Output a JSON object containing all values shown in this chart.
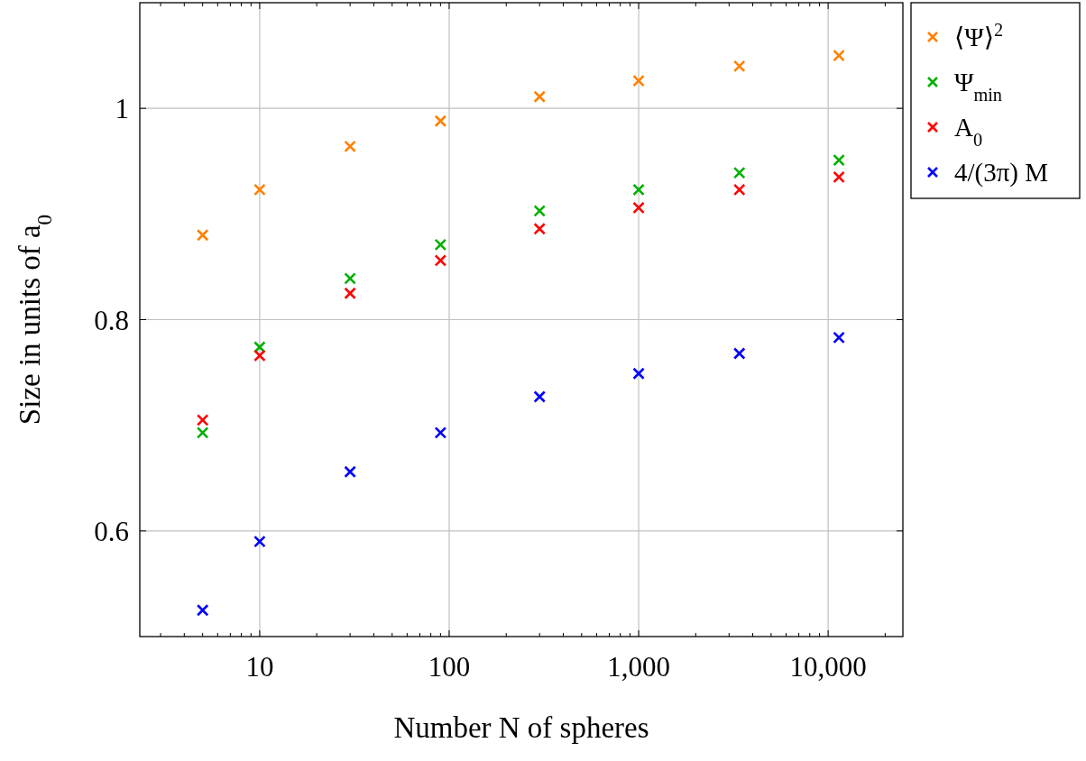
{
  "chart_data": {
    "type": "scatter",
    "xlabel": "Number N of spheres",
    "ylabel": "Size in units of a$_{0}$",
    "x": [
      5,
      10,
      30,
      90,
      300,
      1000,
      3400,
      11400
    ],
    "series": [
      {
        "name": "⟨Ψ⟩$^{2}$",
        "color": "#ff8000",
        "values": [
          0.88,
          0.923,
          0.964,
          0.988,
          1.011,
          1.026,
          1.04,
          1.05
        ]
      },
      {
        "name": "Ψ$_{min}$",
        "color": "#00b000",
        "values": [
          0.693,
          0.774,
          0.839,
          0.871,
          0.903,
          0.923,
          0.939,
          0.951
        ]
      },
      {
        "name": "A$_{0}$",
        "color": "#ff0000",
        "values": [
          0.705,
          0.766,
          0.825,
          0.856,
          0.886,
          0.906,
          0.923,
          0.935
        ]
      },
      {
        "name": "4/(3π) M",
        "color": "#0000ff",
        "values": [
          0.525,
          0.59,
          0.656,
          0.693,
          0.727,
          0.749,
          0.768,
          0.783
        ]
      }
    ],
    "log": "x",
    "xlim": [
      2.33,
      24800
    ],
    "ylim": [
      0.5,
      1.1
    ],
    "xticks": [
      10,
      100,
      {
        "value": 1000,
        "label": "1,000"
      },
      {
        "value": 10000,
        "label": "10,000"
      }
    ],
    "yticks": [
      0.6,
      0.8,
      1
    ],
    "grid": true,
    "legend": "top right",
    "marker": "cross"
  }
}
